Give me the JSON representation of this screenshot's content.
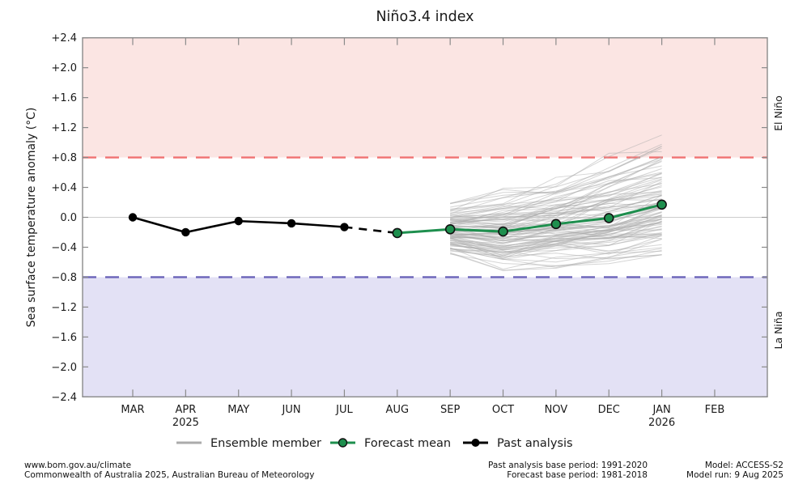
{
  "title": "Niño3.4 index",
  "ylabel": "Sea surface temperature anomaly (°C)",
  "side_labels": {
    "top": "El Niño",
    "bottom": "La Niña"
  },
  "legend": [
    {
      "label": "Ensemble member"
    },
    {
      "label": "Forecast mean"
    },
    {
      "label": "Past analysis"
    }
  ],
  "footer": {
    "left_line1": "www.bom.gov.au/climate",
    "left_line2": "Commonwealth of Australia 2025, Australian Bureau of Meteorology",
    "mid_line1": "Past analysis base period: 1991-2020",
    "mid_line2": "Forecast base period: 1981-2018",
    "right_line1": "Model: ACCESS-S2",
    "right_line2": "Model run: 9 Aug 2025"
  },
  "chart_data": {
    "type": "line",
    "title": "Niño3.4 index",
    "xlabel": "",
    "ylabel": "Sea surface temperature anomaly (°C)",
    "x_categories": [
      "MAR",
      "APR",
      "MAY",
      "JUN",
      "JUL",
      "AUG",
      "SEP",
      "OCT",
      "NOV",
      "DEC",
      "JAN",
      "FEB"
    ],
    "year_labels": [
      {
        "index": 1,
        "label": "2025"
      },
      {
        "index": 10,
        "label": "2026"
      }
    ],
    "ylim": [
      -2.4,
      2.4
    ],
    "ytick_values": [
      2.4,
      2.0,
      1.6,
      1.2,
      0.8,
      0.4,
      0.0,
      -0.4,
      -0.8,
      -1.2,
      -1.6,
      -2.0,
      -2.4
    ],
    "ytick_labels": [
      "+2.4",
      "+2.0",
      "+1.6",
      "+1.2",
      "+0.8",
      "+0.4",
      "0.0",
      "−0.4",
      "−0.8",
      "−1.2",
      "−1.6",
      "−2.0",
      "−2.4"
    ],
    "thresholds": {
      "el_nino": 0.8,
      "la_nina": -0.8
    },
    "grid": "zero-line-only",
    "legend_position": "bottom-center",
    "series": [
      {
        "name": "Past analysis",
        "x_indices": [
          0,
          1,
          2,
          3,
          4
        ],
        "values": [
          0.0,
          -0.2,
          -0.05,
          -0.08,
          -0.13
        ],
        "style": "solid-black-markers"
      },
      {
        "name": "Past-to-forecast bridge",
        "x_indices": [
          4,
          5
        ],
        "values": [
          -0.13,
          -0.21
        ],
        "style": "dashed-black"
      },
      {
        "name": "Forecast mean",
        "x_indices": [
          5,
          6,
          7,
          8,
          9,
          10
        ],
        "values": [
          -0.21,
          -0.16,
          -0.19,
          -0.09,
          -0.01,
          0.17
        ],
        "style": "solid-green-markers"
      }
    ],
    "ensemble": {
      "name": "Ensemble member",
      "count": 99,
      "x_indices": [
        6,
        7,
        8,
        9,
        10
      ],
      "mean_values": [
        -0.16,
        -0.19,
        -0.09,
        -0.01,
        0.17
      ],
      "envelope_min": [
        -0.52,
        -0.75,
        -0.68,
        -0.62,
        -0.5
      ],
      "envelope_max": [
        0.27,
        0.45,
        0.62,
        0.92,
        1.1
      ]
    }
  },
  "colors": {
    "el_nino_band": "#fbe5e3",
    "la_nina_band": "#e3e1f5",
    "el_nino_line": "#f07272",
    "la_nina_line": "#6a63b9",
    "el_nino_label": "#e06c6c",
    "la_nina_label": "#6a63b9",
    "forecast_green": "#1e8f4e",
    "ensemble_gray": "#ababab",
    "past_black": "#000000",
    "frame": "#8a8a8a",
    "zero_line": "#cccccc"
  }
}
